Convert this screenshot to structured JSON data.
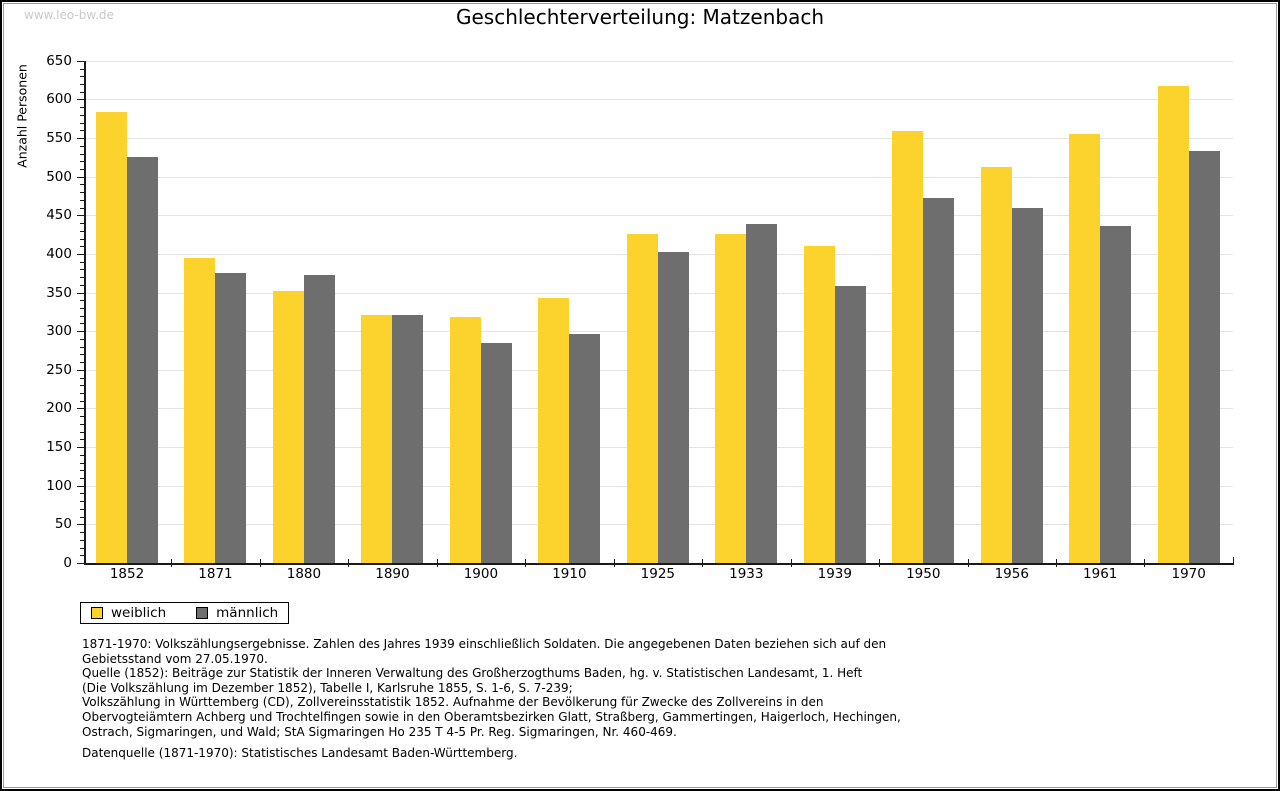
{
  "page": {
    "watermark": "www.leo-bw.de",
    "title": "Geschlechterverteilung: Matzenbach"
  },
  "chart_data": {
    "type": "bar",
    "title": "Geschlechterverteilung: Matzenbach",
    "xlabel": "",
    "ylabel": "Anzahl Personen",
    "ylim": [
      0,
      650
    ],
    "ytick_step": 50,
    "yminor_step": 10,
    "grid": true,
    "legend_position": "bottom-left",
    "categories": [
      "1852",
      "1871",
      "1880",
      "1890",
      "1900",
      "1910",
      "1925",
      "1933",
      "1939",
      "1950",
      "1956",
      "1961",
      "1970"
    ],
    "series": [
      {
        "name": "weiblich",
        "color": "#FCD32D",
        "values": [
          584,
          395,
          352,
          321,
          318,
          343,
          426,
          426,
          410,
          559,
          512,
          555,
          617
        ]
      },
      {
        "name": "männlich",
        "color": "#6E6E6E",
        "values": [
          525,
          375,
          373,
          321,
          285,
          297,
          403,
          439,
          359,
          472,
          460,
          436,
          533
        ]
      }
    ]
  },
  "footer": {
    "paragraph1_lines": [
      "1871-1970: Volkszählungsergebnisse. Zahlen des Jahres 1939 einschließlich Soldaten. Die angegebenen Daten beziehen sich auf den",
      "Gebietsstand vom 27.05.1970.",
      "Quelle (1852): Beiträge zur Statistik der Inneren Verwaltung des Großherzogthums Baden, hg. v. Statistischen Landesamt, 1. Heft",
      "(Die Volkszählung im Dezember 1852), Tabelle I, Karlsruhe 1855, S. 1-6, S. 7-239;",
      "Volkszählung in Württemberg (CD), Zollvereinsstatistik 1852. Aufnahme der Bevölkerung für Zwecke des Zollvereins in den",
      "Obervogteiämtern Achberg und Trochtelfingen sowie in den Oberamtsbezirken Glatt, Straßberg, Gammertingen, Haigerloch, Hechingen,",
      "Ostrach, Sigmaringen, und Wald; StA Sigmaringen Ho 235 T 4-5 Pr. Reg. Sigmaringen, Nr. 460-469."
    ],
    "paragraph2": "Datenquelle (1871-1970): Statistisches Landesamt Baden-Württemberg."
  },
  "colors": {
    "weiblich": "#FCD32D",
    "männlich": "#6E6E6E",
    "gridline": "#E4E4E4",
    "axis": "#1A1A1A",
    "watermark": "#C9C9C9"
  }
}
